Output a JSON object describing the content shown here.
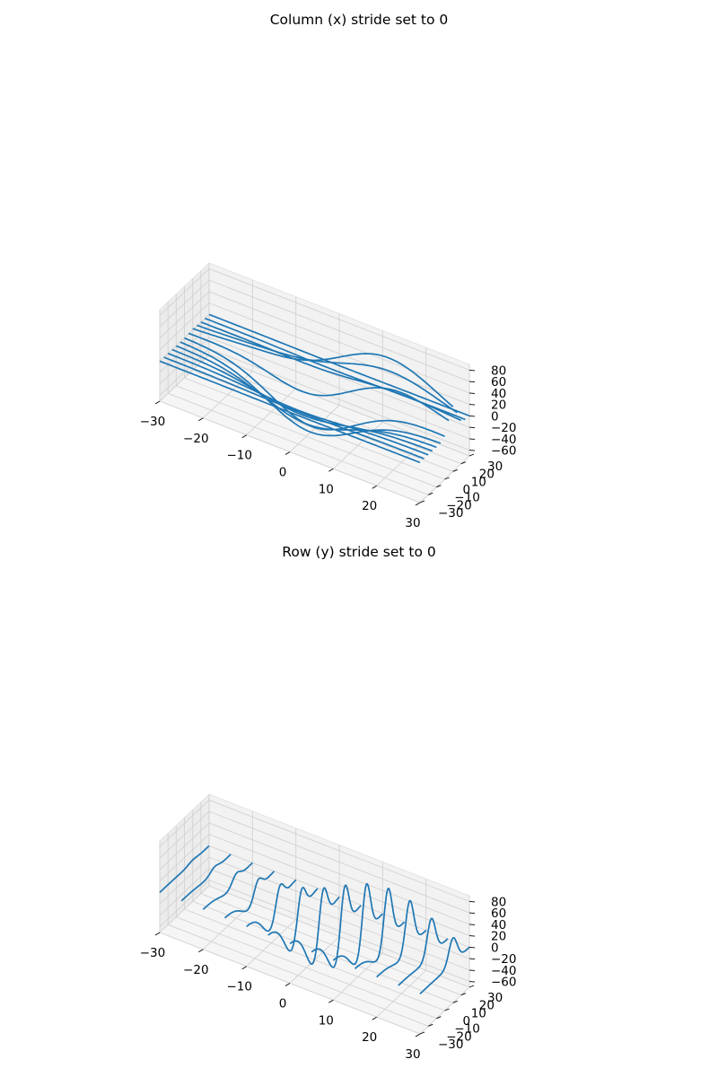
{
  "chart_data": [
    {
      "type": "wireframe-3d",
      "title": "Column (x) stride set to 0",
      "stride": "column (x) stride 0 — lines drawn along x at fixed y",
      "xlim": [
        -30,
        30
      ],
      "ylim": [
        -30,
        30
      ],
      "zlim": [
        -70,
        90
      ],
      "x_ticks": [
        -30,
        -20,
        -10,
        0,
        10,
        20,
        30
      ],
      "y_ticks": [
        -30,
        -20,
        -10,
        0,
        10,
        20,
        30
      ],
      "z_ticks": [
        -60,
        -40,
        -20,
        0,
        20,
        40,
        60,
        80
      ],
      "grid": true,
      "series_color": "#1f77b4"
    },
    {
      "type": "wireframe-3d",
      "title": "Row (y) stride set to 0",
      "stride": "row (y) stride 0 — lines drawn along y at fixed x",
      "xlim": [
        -30,
        30
      ],
      "ylim": [
        -30,
        30
      ],
      "zlim": [
        -70,
        90
      ],
      "x_ticks": [
        -30,
        -20,
        -10,
        0,
        10,
        20,
        30
      ],
      "y_ticks": [
        -30,
        -20,
        -10,
        0,
        10,
        20,
        30
      ],
      "z_ticks": [
        -60,
        -40,
        -20,
        0,
        20,
        40,
        60,
        80
      ],
      "grid": true,
      "series_color": "#1f77b4"
    }
  ]
}
